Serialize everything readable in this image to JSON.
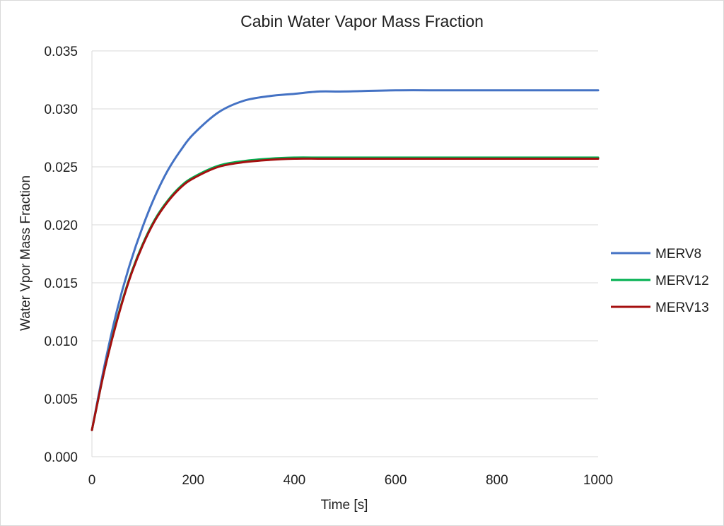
{
  "chart_data": {
    "type": "line",
    "title": "Cabin Water Vapor Mass Fraction",
    "xlabel": "Time [s]",
    "ylabel": "Water Vpor Mass Fraction",
    "xlim": [
      0,
      1000
    ],
    "ylim": [
      0,
      0.035
    ],
    "x_ticks": [
      "0",
      "200",
      "400",
      "600",
      "800",
      "1000"
    ],
    "y_ticks": [
      "0.000",
      "0.005",
      "0.010",
      "0.015",
      "0.020",
      "0.025",
      "0.030",
      "0.035"
    ],
    "grid": "horizontal",
    "legend_position": "right",
    "series": [
      {
        "name": "MERV8",
        "color": "#4472c4",
        "x": [
          0,
          25,
          50,
          75,
          100,
          125,
          150,
          175,
          200,
          250,
          300,
          350,
          400,
          450,
          500,
          600,
          700,
          800,
          900,
          1000
        ],
        "values": [
          0.0023,
          0.0079,
          0.0127,
          0.0166,
          0.0198,
          0.0225,
          0.0247,
          0.0264,
          0.0278,
          0.0297,
          0.0307,
          0.0311,
          0.0313,
          0.0315,
          0.0315,
          0.0316,
          0.0316,
          0.0316,
          0.0316,
          0.0316
        ]
      },
      {
        "name": "MERV12",
        "color": "#00b050",
        "x": [
          0,
          25,
          50,
          75,
          100,
          125,
          150,
          175,
          200,
          250,
          300,
          350,
          400,
          450,
          500,
          600,
          700,
          800,
          900,
          1000
        ],
        "values": [
          0.0023,
          0.0075,
          0.0119,
          0.0155,
          0.0183,
          0.0205,
          0.0221,
          0.0233,
          0.0241,
          0.0251,
          0.0255,
          0.0257,
          0.0258,
          0.0258,
          0.0258,
          0.0258,
          0.0258,
          0.0258,
          0.0258,
          0.0258
        ]
      },
      {
        "name": "MERV13",
        "color": "#a50f0f",
        "x": [
          0,
          25,
          50,
          75,
          100,
          125,
          150,
          175,
          200,
          250,
          300,
          350,
          400,
          450,
          500,
          600,
          700,
          800,
          900,
          1000
        ],
        "values": [
          0.0023,
          0.0075,
          0.0118,
          0.0154,
          0.0182,
          0.0204,
          0.022,
          0.0232,
          0.024,
          0.025,
          0.0254,
          0.0256,
          0.0257,
          0.0257,
          0.0257,
          0.0257,
          0.0257,
          0.0257,
          0.0257,
          0.0257
        ]
      }
    ]
  }
}
